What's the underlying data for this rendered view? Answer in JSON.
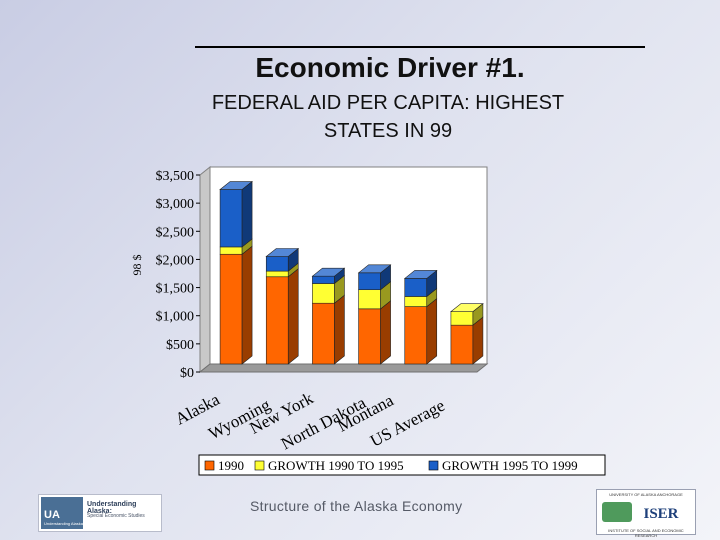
{
  "slide": {
    "title": "Economic Driver #1.",
    "subtitle_line1": "FEDERAL AID PER CAPITA:  HIGHEST",
    "subtitle_line2": "STATES IN 99",
    "footer": "Structure of the Alaska Economy"
  },
  "logos": {
    "ua_mark": "UA",
    "ua_mark_sub": "Understanding Alaska",
    "ua_name": "Understanding Alaska:",
    "ua_series": "Special Economic Studies",
    "iser_top": "UNIVERSITY OF ALASKA ANCHORAGE",
    "iser_name": "ISER",
    "iser_bottom": "INSTITUTE OF SOCIAL AND ECONOMIC RESEARCH"
  },
  "colors": {
    "series_1990": "#ff6600",
    "series_1990_1995": "#ffff33",
    "series_1995_1999": "#1a5fc8",
    "floor": "#9a9a9a",
    "wall": "#ffffff"
  },
  "chart_data": {
    "type": "bar",
    "stacked": true,
    "three_d": true,
    "ylabel": "98 $",
    "ylim": [
      0,
      3500
    ],
    "yticks": [
      0,
      500,
      1000,
      1500,
      2000,
      2500,
      3000,
      3500
    ],
    "ytick_labels": [
      "$0",
      "$500",
      "$1,000",
      "$1,500",
      "$2,000",
      "$2,500",
      "$3,000",
      "$3,500"
    ],
    "categories": [
      "Alaska",
      "Wyoming",
      "New York",
      "North Dakota",
      "Montana",
      "US Average"
    ],
    "series": [
      {
        "name": "1990",
        "values": [
          1950,
          1550,
          1080,
          980,
          1020,
          690
        ]
      },
      {
        "name": "GROWTH 1990 TO 1995",
        "values": [
          130,
          100,
          350,
          340,
          180,
          240
        ]
      },
      {
        "name": "GROWTH 1995 TO 1999",
        "values": [
          1020,
          260,
          130,
          300,
          320,
          0
        ]
      }
    ],
    "legend_position": "bottom"
  }
}
